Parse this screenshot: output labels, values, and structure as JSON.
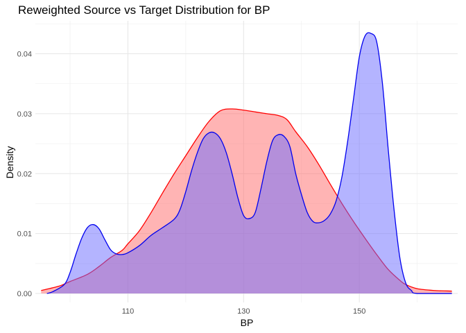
{
  "chart_data": {
    "type": "area",
    "title": "Reweighted Source vs Target Distribution for BP",
    "xlabel": "BP",
    "ylabel": "Density",
    "xlim": [
      94,
      167
    ],
    "ylim": [
      -0.0015,
      0.0455
    ],
    "x_ticks": [
      110,
      130,
      150
    ],
    "x_tick_labels": [
      "110",
      "130",
      "150"
    ],
    "x_minor_ticks": [
      100,
      120,
      140,
      160
    ],
    "y_ticks": [
      0.0,
      0.01,
      0.02,
      0.03,
      0.04
    ],
    "y_tick_labels": [
      "0.00",
      "0.01",
      "0.02",
      "0.03",
      "0.04"
    ],
    "grid": true,
    "legend": "none",
    "series": [
      {
        "color_line": "#ff0000",
        "color_fill": "#ff6a6a",
        "fill_opacity": 0.5,
        "points": [
          [
            95,
            0.0005
          ],
          [
            98,
            0.0012
          ],
          [
            100,
            0.002
          ],
          [
            103,
            0.0032
          ],
          [
            105,
            0.0045
          ],
          [
            107,
            0.006
          ],
          [
            109,
            0.0072
          ],
          [
            110,
            0.0083
          ],
          [
            112,
            0.0105
          ],
          [
            114,
            0.0135
          ],
          [
            116,
            0.0168
          ],
          [
            118,
            0.02
          ],
          [
            120,
            0.023
          ],
          [
            122,
            0.026
          ],
          [
            124,
            0.0287
          ],
          [
            126,
            0.0305
          ],
          [
            128,
            0.0308
          ],
          [
            130,
            0.0306
          ],
          [
            132,
            0.0303
          ],
          [
            134,
            0.03
          ],
          [
            136,
            0.0297
          ],
          [
            137.5,
            0.029
          ],
          [
            139,
            0.027
          ],
          [
            141,
            0.0245
          ],
          [
            143,
            0.0215
          ],
          [
            145,
            0.0182
          ],
          [
            147,
            0.015
          ],
          [
            149,
            0.012
          ],
          [
            151,
            0.0092
          ],
          [
            153,
            0.0065
          ],
          [
            155,
            0.004
          ],
          [
            157,
            0.0022
          ],
          [
            158,
            0.0015
          ],
          [
            160,
            0.0008
          ],
          [
            163,
            0.0005
          ],
          [
            166,
            0.0004
          ]
        ]
      },
      {
        "color_line": "#0000ee",
        "color_fill": "#6a6aff",
        "fill_opacity": 0.5,
        "points": [
          [
            96,
            0.0
          ],
          [
            97,
            0.0003
          ],
          [
            99,
            0.0015
          ],
          [
            100,
            0.0035
          ],
          [
            101,
            0.0065
          ],
          [
            102,
            0.0092
          ],
          [
            103,
            0.011
          ],
          [
            104,
            0.0115
          ],
          [
            105,
            0.0108
          ],
          [
            106,
            0.009
          ],
          [
            107,
            0.0073
          ],
          [
            108,
            0.0066
          ],
          [
            109,
            0.0065
          ],
          [
            110,
            0.0068
          ],
          [
            112,
            0.008
          ],
          [
            114,
            0.0097
          ],
          [
            116,
            0.011
          ],
          [
            118,
            0.0124
          ],
          [
            119,
            0.014
          ],
          [
            120,
            0.017
          ],
          [
            121,
            0.0205
          ],
          [
            122,
            0.0235
          ],
          [
            123,
            0.0258
          ],
          [
            124,
            0.0268
          ],
          [
            125,
            0.0268
          ],
          [
            126,
            0.0258
          ],
          [
            127,
            0.0235
          ],
          [
            128,
            0.02
          ],
          [
            129,
            0.016
          ],
          [
            130,
            0.013
          ],
          [
            131,
            0.0125
          ],
          [
            132,
            0.0135
          ],
          [
            133,
            0.0175
          ],
          [
            134,
            0.022
          ],
          [
            135,
            0.0255
          ],
          [
            136,
            0.0265
          ],
          [
            137,
            0.0262
          ],
          [
            138,
            0.0245
          ],
          [
            139,
            0.02
          ],
          [
            140,
            0.0165
          ],
          [
            141,
            0.0135
          ],
          [
            142,
            0.012
          ],
          [
            143,
            0.0118
          ],
          [
            144,
            0.0122
          ],
          [
            145,
            0.0133
          ],
          [
            146,
            0.0155
          ],
          [
            147,
            0.0195
          ],
          [
            148,
            0.0255
          ],
          [
            149,
            0.0325
          ],
          [
            150,
            0.0395
          ],
          [
            151,
            0.043
          ],
          [
            152,
            0.0434
          ],
          [
            153,
            0.042
          ],
          [
            154,
            0.035
          ],
          [
            155,
            0.024
          ],
          [
            156,
            0.014
          ],
          [
            157,
            0.006
          ],
          [
            158,
            0.0018
          ],
          [
            159,
            0.0005
          ],
          [
            160,
            0.0
          ],
          [
            166,
            0.0
          ]
        ]
      }
    ]
  }
}
